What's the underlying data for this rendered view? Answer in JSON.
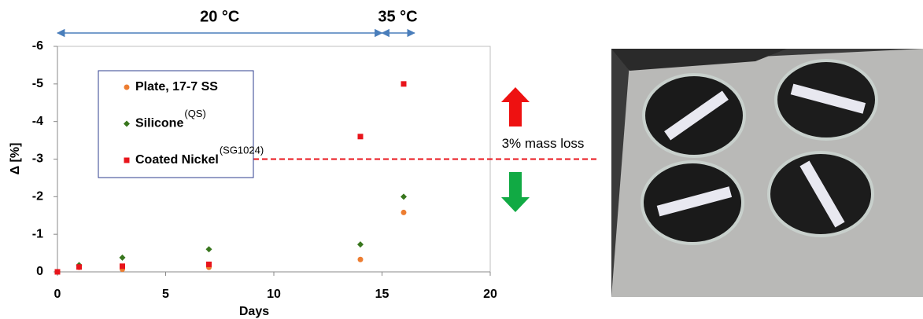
{
  "chart_data": {
    "type": "scatter",
    "x_label": "Days",
    "y_label": "Δ [%]",
    "xlim": [
      0,
      20
    ],
    "xticks": [
      0,
      5,
      10,
      15,
      20
    ],
    "ylim": [
      0,
      -6
    ],
    "yticks": [
      0,
      -1,
      -2,
      -3,
      -4,
      -5,
      -6
    ],
    "series": [
      {
        "name": "Plate, 17-7 SS",
        "color": "#ed7d31",
        "marker": "circle",
        "x": [
          0,
          1,
          3,
          7,
          14,
          16
        ],
        "values": [
          0,
          -0.12,
          -0.07,
          -0.12,
          -0.33,
          -1.58
        ]
      },
      {
        "name": "Silicone",
        "superscript": "(QS)",
        "color": "#38761d",
        "marker": "diamond",
        "x": [
          0,
          1,
          3,
          7,
          14,
          16
        ],
        "values": [
          0,
          -0.18,
          -0.38,
          -0.6,
          -0.73,
          -2.0
        ]
      },
      {
        "name": "Coated Nickel",
        "superscript": "(SG1024)",
        "color": "#e8141b",
        "marker": "square",
        "x": [
          0,
          1,
          3,
          7,
          14,
          16
        ],
        "values": [
          0,
          -0.13,
          -0.15,
          -0.2,
          -3.6,
          -5.0
        ]
      }
    ],
    "threshold": {
      "value": -3,
      "label": "3% mass loss",
      "color": "#e8141b"
    },
    "temperature_ranges": [
      {
        "label": "20 °C",
        "from": 0,
        "to": 15
      },
      {
        "label": "35 °C",
        "from": 15,
        "to": 16.5
      }
    ]
  }
}
